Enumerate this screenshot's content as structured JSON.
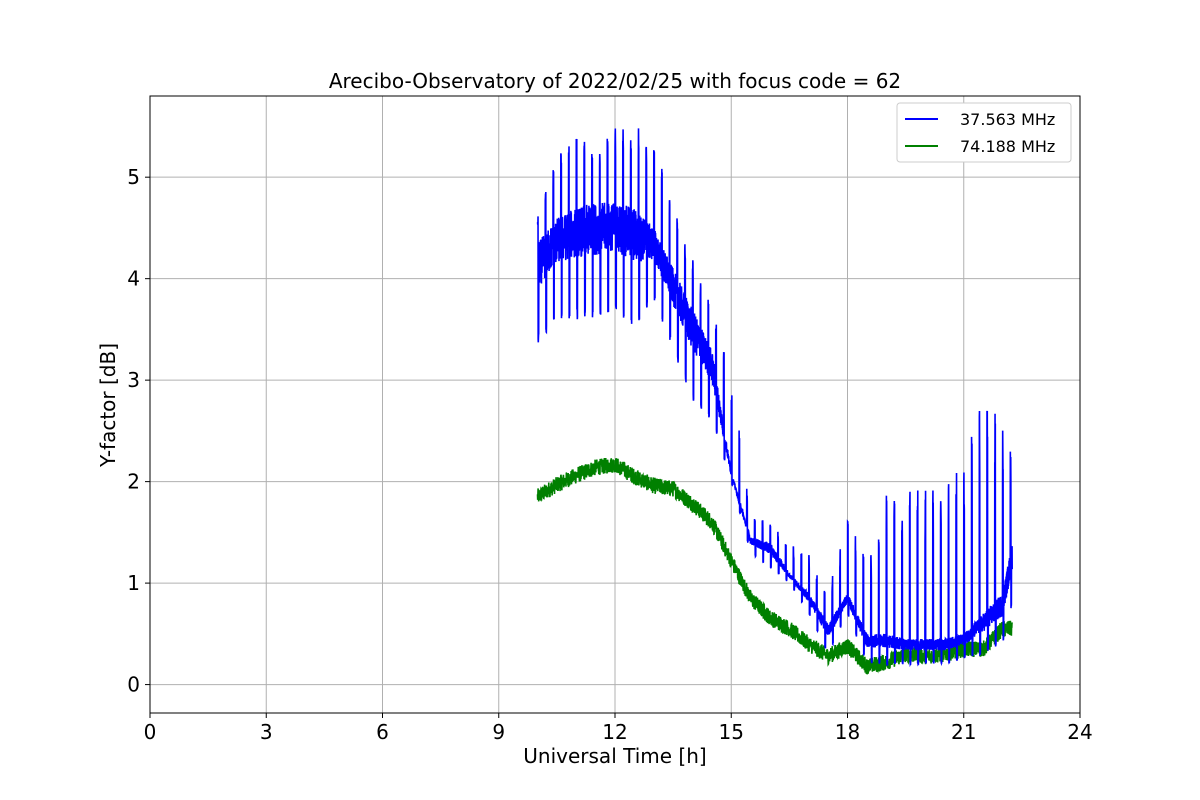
{
  "chart_data": {
    "type": "line",
    "title": "Arecibo-Observatory of 2022/02/25 with focus code = 62",
    "xlabel": "Universal Time [h]",
    "ylabel": "Y-factor [dB]",
    "xlim": [
      0,
      24
    ],
    "ylim": [
      -0.28,
      5.8
    ],
    "xticks": [
      0,
      3,
      6,
      9,
      12,
      15,
      18,
      21,
      24
    ],
    "yticks": [
      0,
      1,
      2,
      3,
      4,
      5
    ],
    "grid": true,
    "legend_position": "top-right",
    "series": [
      {
        "name": "37.563 MHz",
        "color": "#0000ff",
        "envelope": {
          "x": [
            10.0,
            10.5,
            11.0,
            11.5,
            12.0,
            12.5,
            13.0,
            13.5,
            14.0,
            14.5,
            15.0,
            15.5,
            16.0,
            16.5,
            17.0,
            17.5,
            18.0,
            18.5,
            19.0,
            19.5,
            20.0,
            20.5,
            21.0,
            21.5,
            22.0,
            22.25
          ],
          "low": [
            3.35,
            3.6,
            3.6,
            3.6,
            3.7,
            3.5,
            3.8,
            3.3,
            2.8,
            2.6,
            2.0,
            1.3,
            1.15,
            1.0,
            0.7,
            0.3,
            0.7,
            0.2,
            0.2,
            0.2,
            0.2,
            0.2,
            0.25,
            0.3,
            0.4,
            0.8
          ],
          "high": [
            4.35,
            4.6,
            4.7,
            4.75,
            4.75,
            4.7,
            4.5,
            4.1,
            3.7,
            3.3,
            2.1,
            1.45,
            1.4,
            1.1,
            0.9,
            0.6,
            0.9,
            0.5,
            0.5,
            0.45,
            0.45,
            0.45,
            0.5,
            0.7,
            0.9,
            1.4
          ],
          "spike": [
            4.6,
            5.2,
            5.4,
            5.3,
            5.5,
            5.5,
            5.5,
            4.7,
            4.2,
            3.8,
            3.1,
            1.65,
            1.6,
            1.4,
            1.3,
            0.9,
            1.7,
            1.2,
            1.9,
            1.9,
            2.0,
            2.0,
            2.3,
            2.8,
            2.6,
            2.25
          ]
        }
      },
      {
        "name": "74.188 MHz",
        "color": "#008000",
        "envelope": {
          "x": [
            10.0,
            10.5,
            11.0,
            11.5,
            12.0,
            12.5,
            13.0,
            13.5,
            14.0,
            14.5,
            15.0,
            15.5,
            16.0,
            16.5,
            17.0,
            17.5,
            18.0,
            18.5,
            19.0,
            19.5,
            20.0,
            20.5,
            21.0,
            21.5,
            22.0,
            22.25
          ],
          "mid": [
            1.85,
            1.97,
            2.06,
            2.14,
            2.17,
            2.05,
            1.96,
            1.93,
            1.78,
            1.6,
            1.22,
            0.85,
            0.66,
            0.55,
            0.4,
            0.28,
            0.38,
            0.18,
            0.22,
            0.3,
            0.28,
            0.3,
            0.35,
            0.35,
            0.55,
            0.55
          ],
          "noise": 0.08
        }
      }
    ]
  }
}
